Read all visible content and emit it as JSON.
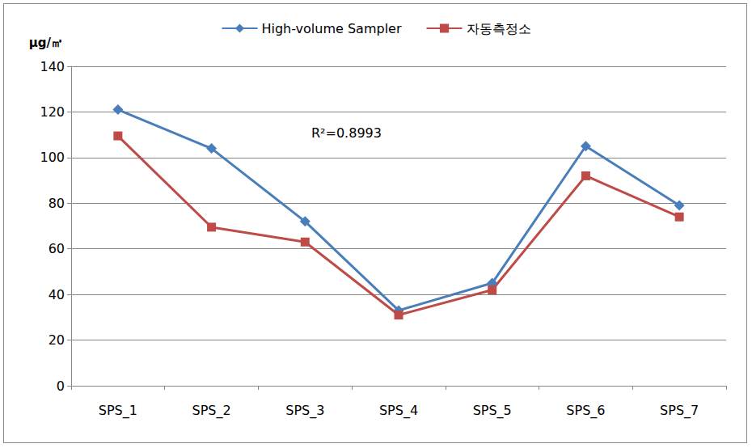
{
  "chart_data": {
    "type": "line",
    "y_label": "μg/㎥",
    "annotations": [
      "R²=0.8993"
    ],
    "categories": [
      "SPS_1",
      "SPS_2",
      "SPS_3",
      "SPS_4",
      "SPS_5",
      "SPS_6",
      "SPS_7"
    ],
    "series": [
      {
        "name": "High-volume Sampler",
        "color": "#4a7ebb",
        "marker": "diamond",
        "values": [
          121,
          104,
          72,
          33,
          45,
          105,
          79
        ]
      },
      {
        "name": "자동측정소",
        "color": "#be4b48",
        "marker": "square",
        "values": [
          109.5,
          69.5,
          63,
          31,
          42,
          92,
          74
        ]
      }
    ],
    "ylim": [
      0,
      140
    ],
    "yticks": [
      0,
      20,
      40,
      60,
      80,
      100,
      120,
      140
    ],
    "grid": true,
    "legend": "top"
  }
}
